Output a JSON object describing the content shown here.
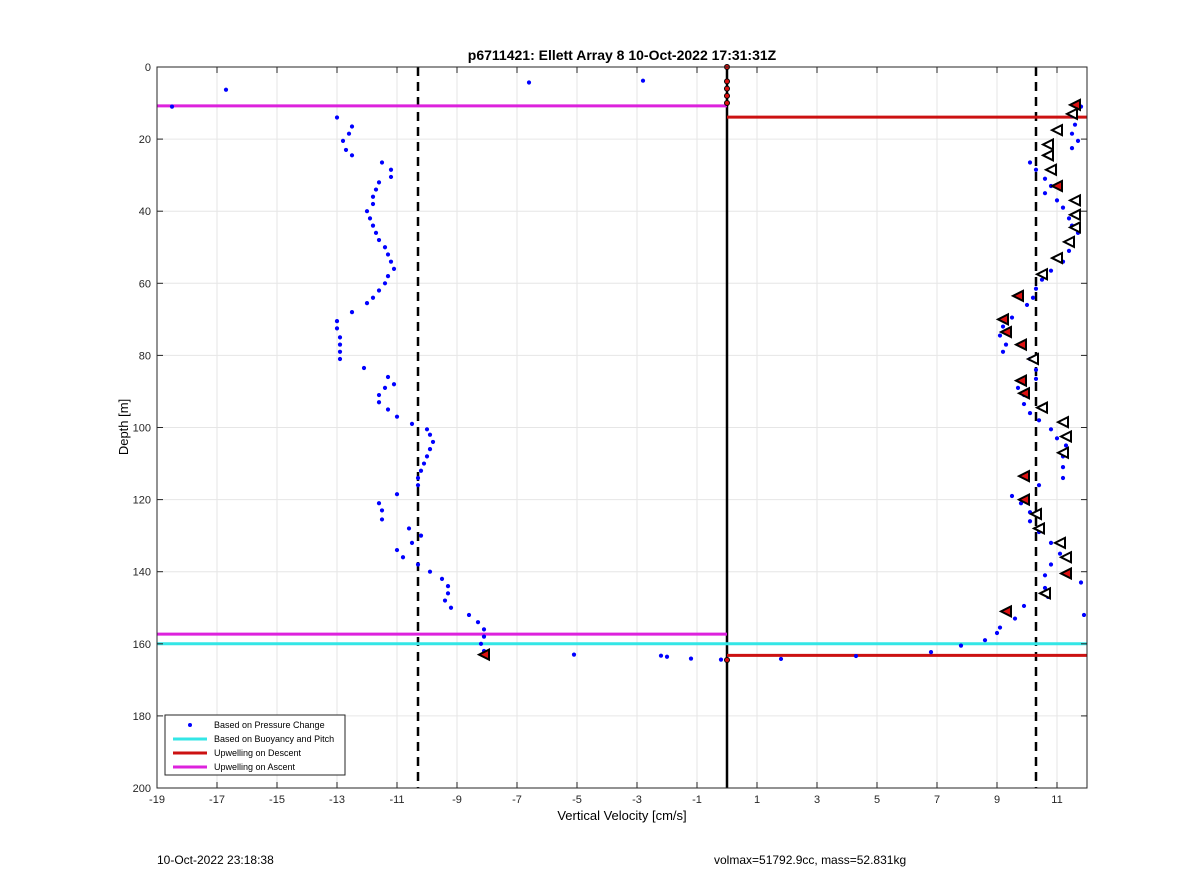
{
  "chart_data": {
    "type": "scatter",
    "title": "p6711421: Ellett Array 8 10-Oct-2022 17:31:31Z",
    "xlabel": "Vertical Velocity [cm/s]",
    "ylabel": "Depth [m]",
    "xlim": [
      -19,
      12
    ],
    "ylim": [
      0,
      200
    ],
    "y_reversed": true,
    "x_ticks": [
      -19,
      -17,
      -15,
      -13,
      -11,
      -9,
      -7,
      -5,
      -3,
      -1,
      1,
      3,
      5,
      7,
      9,
      11
    ],
    "y_ticks": [
      0,
      20,
      40,
      60,
      80,
      100,
      120,
      140,
      160,
      180,
      200
    ],
    "grid": true,
    "legend_position": "bottom-left",
    "legend": [
      {
        "label": "Based on Pressure Change",
        "color": "#0000ff",
        "kind": "dot"
      },
      {
        "label": "Based on Buoyancy and Pitch",
        "color": "#33e6e6",
        "kind": "line"
      },
      {
        "label": "Upwelling on Descent",
        "color": "#cc1111",
        "kind": "line"
      },
      {
        "label": "Upwelling on Ascent",
        "color": "#dd22dd",
        "kind": "line"
      }
    ],
    "reference_lines": {
      "dashed_x": [
        -10.3,
        10.3
      ],
      "solid_x": [
        0
      ]
    },
    "series": [
      {
        "name": "Based on Pressure Change",
        "color": "#0000ff",
        "points": [
          [
            -18.5,
            11
          ],
          [
            -16.7,
            6.3
          ],
          [
            -6.6,
            4.3
          ],
          [
            -2.8,
            3.8
          ],
          [
            -13,
            14
          ],
          [
            -12.5,
            16.5
          ],
          [
            -12.6,
            18.5
          ],
          [
            -12.8,
            20.5
          ],
          [
            -12.7,
            23
          ],
          [
            -12.5,
            24.5
          ],
          [
            -11.5,
            26.5
          ],
          [
            -11.2,
            28.5
          ],
          [
            -11.2,
            30.5
          ],
          [
            -11.6,
            32
          ],
          [
            -11.7,
            34
          ],
          [
            -11.8,
            36
          ],
          [
            -11.8,
            38
          ],
          [
            -12,
            40
          ],
          [
            -11.9,
            42
          ],
          [
            -11.8,
            44
          ],
          [
            -11.7,
            46
          ],
          [
            -11.6,
            48
          ],
          [
            -11.4,
            50
          ],
          [
            -11.3,
            52
          ],
          [
            -11.2,
            54
          ],
          [
            -11.1,
            56
          ],
          [
            -11.3,
            58
          ],
          [
            -11.4,
            60
          ],
          [
            -11.6,
            62
          ],
          [
            -11.8,
            64
          ],
          [
            -12,
            65.5
          ],
          [
            -12.5,
            68
          ],
          [
            -13,
            70.5
          ],
          [
            -13,
            72.5
          ],
          [
            -12.9,
            75
          ],
          [
            -12.9,
            77
          ],
          [
            -12.9,
            79
          ],
          [
            -12.9,
            81
          ],
          [
            -12.1,
            83.5
          ],
          [
            -11.3,
            86
          ],
          [
            -11.1,
            88
          ],
          [
            -11.4,
            89
          ],
          [
            -11.6,
            91
          ],
          [
            -11.6,
            93
          ],
          [
            -11.3,
            95
          ],
          [
            -11,
            97
          ],
          [
            -10.5,
            99
          ],
          [
            -10,
            100.5
          ],
          [
            -9.9,
            102
          ],
          [
            -9.8,
            104
          ],
          [
            -9.9,
            106
          ],
          [
            -10,
            108
          ],
          [
            -10.1,
            110
          ],
          [
            -10.2,
            112
          ],
          [
            -10.3,
            114
          ],
          [
            -10.3,
            116
          ],
          [
            -11,
            118.5
          ],
          [
            -11.6,
            121
          ],
          [
            -11.5,
            123
          ],
          [
            -11.5,
            125.5
          ],
          [
            -10.6,
            128
          ],
          [
            -10.2,
            130
          ],
          [
            -10.5,
            132
          ],
          [
            -11,
            134
          ],
          [
            -10.8,
            136
          ],
          [
            -10.3,
            138
          ],
          [
            -9.9,
            140
          ],
          [
            -9.5,
            142
          ],
          [
            -9.3,
            144
          ],
          [
            -9.3,
            146
          ],
          [
            -9.4,
            148
          ],
          [
            -9.2,
            150
          ],
          [
            -8.6,
            152
          ],
          [
            -8.3,
            154
          ],
          [
            -8.1,
            156
          ],
          [
            -8.1,
            158
          ],
          [
            -8.2,
            160
          ],
          [
            -8.1,
            162
          ],
          [
            -5.1,
            163
          ],
          [
            -2.2,
            163.3
          ],
          [
            -2,
            163.6
          ],
          [
            -1.2,
            164.1
          ],
          [
            -0.2,
            164.4
          ],
          [
            1.8,
            164.2
          ],
          [
            4.3,
            163.4
          ],
          [
            6.8,
            162.3
          ],
          [
            7.8,
            160.5
          ],
          [
            8.6,
            159
          ],
          [
            9,
            157
          ],
          [
            9.1,
            155.5
          ],
          [
            9.6,
            153
          ],
          [
            9.9,
            149.5
          ],
          [
            10.7,
            147
          ],
          [
            10.6,
            144.5
          ],
          [
            10.6,
            141
          ],
          [
            10.8,
            138
          ],
          [
            11.1,
            135
          ],
          [
            10.8,
            132
          ],
          [
            10.4,
            129
          ],
          [
            10.1,
            126
          ],
          [
            10.1,
            123.5
          ],
          [
            9.8,
            121
          ],
          [
            9.5,
            119
          ],
          [
            10.4,
            116
          ],
          [
            11.2,
            114
          ],
          [
            11.2,
            111
          ],
          [
            11.2,
            108
          ],
          [
            11.3,
            105
          ],
          [
            11,
            103
          ],
          [
            10.8,
            100.5
          ],
          [
            10.4,
            98
          ],
          [
            10.1,
            96
          ],
          [
            9.9,
            93.5
          ],
          [
            9.9,
            91
          ],
          [
            9.7,
            89
          ],
          [
            10.3,
            86.5
          ],
          [
            10.3,
            84
          ],
          [
            10.1,
            81
          ],
          [
            9.2,
            79
          ],
          [
            9.3,
            77
          ],
          [
            9.1,
            74.5
          ],
          [
            9.2,
            72
          ],
          [
            9.5,
            69.5
          ],
          [
            10,
            66
          ],
          [
            10.2,
            64
          ],
          [
            10.3,
            61.5
          ],
          [
            10.5,
            59
          ],
          [
            10.8,
            56.5
          ],
          [
            11.2,
            54
          ],
          [
            11.4,
            51
          ],
          [
            11.5,
            49
          ],
          [
            11.7,
            46
          ],
          [
            11.5,
            44
          ],
          [
            11.4,
            42
          ],
          [
            11.2,
            39
          ],
          [
            11,
            37
          ],
          [
            10.6,
            35
          ],
          [
            10.8,
            33
          ],
          [
            10.6,
            31
          ],
          [
            10.3,
            28.5
          ],
          [
            10.1,
            26.5
          ],
          [
            11.8,
            11
          ],
          [
            11.5,
            13.5
          ],
          [
            11.6,
            16
          ],
          [
            11.5,
            18.5
          ],
          [
            11.7,
            20.5
          ],
          [
            11.5,
            22.5
          ],
          [
            11.8,
            143
          ],
          [
            11.9,
            152
          ]
        ]
      },
      {
        "name": "Upwelling on Descent markers",
        "color": "#000000",
        "triangles": [
          [
            11.6,
            10.5
          ],
          [
            11.5,
            13
          ],
          [
            11,
            17.5
          ],
          [
            10.7,
            21.5
          ],
          [
            10.7,
            24.5
          ],
          [
            10.8,
            28.5
          ],
          [
            11,
            33
          ],
          [
            11.6,
            37
          ],
          [
            11.6,
            41
          ],
          [
            11.6,
            44.5
          ],
          [
            11.4,
            48.5
          ],
          [
            11,
            53
          ],
          [
            10.5,
            57.5
          ],
          [
            9.7,
            63.5
          ],
          [
            9.2,
            70
          ],
          [
            9.3,
            73.5
          ],
          [
            9.8,
            77
          ],
          [
            10.2,
            81
          ],
          [
            9.8,
            87
          ],
          [
            9.9,
            90.5
          ],
          [
            10.5,
            94.5
          ],
          [
            11.2,
            98.5
          ],
          [
            11.3,
            102.5
          ],
          [
            11.2,
            107
          ],
          [
            9.9,
            113.5
          ],
          [
            9.9,
            120
          ],
          [
            10.3,
            124
          ],
          [
            10.4,
            128
          ],
          [
            11.1,
            132
          ],
          [
            11.3,
            136
          ],
          [
            11.3,
            140.5
          ],
          [
            10.6,
            146
          ],
          [
            9.3,
            151
          ],
          [
            -8.1,
            163
          ]
        ],
        "filled_triangles": [
          [
            11.6,
            10.5
          ],
          [
            11,
            33
          ],
          [
            9.7,
            63.5
          ],
          [
            9.2,
            70
          ],
          [
            9.3,
            73.5
          ],
          [
            9.8,
            77
          ],
          [
            9.8,
            87
          ],
          [
            9.9,
            90.5
          ],
          [
            9.9,
            113.5
          ],
          [
            9.9,
            120
          ],
          [
            11.3,
            140.5
          ],
          [
            9.3,
            151
          ],
          [
            -8.1,
            163
          ]
        ]
      }
    ],
    "horizontal_lines": [
      {
        "name": "Upwelling on Ascent",
        "color": "#dd22dd",
        "y": 10.8,
        "x_from": -19,
        "x_to": 0
      },
      {
        "name": "Upwelling on Ascent",
        "color": "#dd22dd",
        "y": 157.3,
        "x_from": -19,
        "x_to": 0
      },
      {
        "name": "Upwelling on Descent",
        "color": "#cc1111",
        "y": 13.9,
        "x_from": 0,
        "x_to": 12
      },
      {
        "name": "Upwelling on Descent",
        "color": "#cc1111",
        "y": 163.2,
        "x_from": 0,
        "x_to": 12
      },
      {
        "name": "Based on Buoyancy and Pitch",
        "color": "#33e6e6",
        "y": 160,
        "x_from": -19,
        "x_to": 12
      }
    ],
    "zero_markers": [
      [
        0,
        0
      ],
      [
        0,
        4
      ],
      [
        0,
        6
      ],
      [
        0,
        8
      ],
      [
        0,
        10
      ],
      [
        0,
        164.5
      ]
    ]
  },
  "footer": {
    "left": "10-Oct-2022 23:18:38",
    "right": "volmax=51792.9cc, mass=52.831kg"
  }
}
